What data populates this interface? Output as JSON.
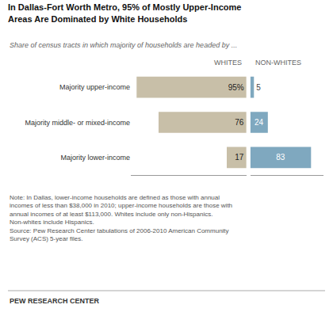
{
  "chart_data": {
    "type": "bar",
    "orientation": "horizontal",
    "title": "In Dallas-Fort Worth Metro, 95% of Mostly Upper-Income\nAreas Are Dominated by White Households",
    "subtitle": "Share of census tracts in which majority of households are headed by ...",
    "categories": [
      "Majority upper-income",
      "Majority middle- or mixed-income",
      "Majority lower-income"
    ],
    "series": [
      {
        "name": "WHITES",
        "color": "#c8bfa8",
        "values": [
          95,
          76,
          17
        ],
        "value_labels": [
          "95%",
          "76",
          "17"
        ]
      },
      {
        "name": "NON-WHITES",
        "color": "#7fa8bf",
        "values": [
          5,
          24,
          83
        ]
      }
    ],
    "xlim": [
      0,
      100
    ],
    "data_labels": true,
    "tick_labels": "y",
    "grid": false,
    "annotations": [
      "Note: In Dallas, lower-income households are defined as those with annual\nincomes of less than $38,000 in 2010; upper-income households are those with\nannual incomes of at least $113,000. Whites include only non-Hispanics.\nNon-whites include Hispanics.\nSource: Pew Research Center tabulations of 2006-2010 American Community\nSurvey (ACS) 5-year files.",
      "PEW RESEARCH CENTER"
    ]
  }
}
